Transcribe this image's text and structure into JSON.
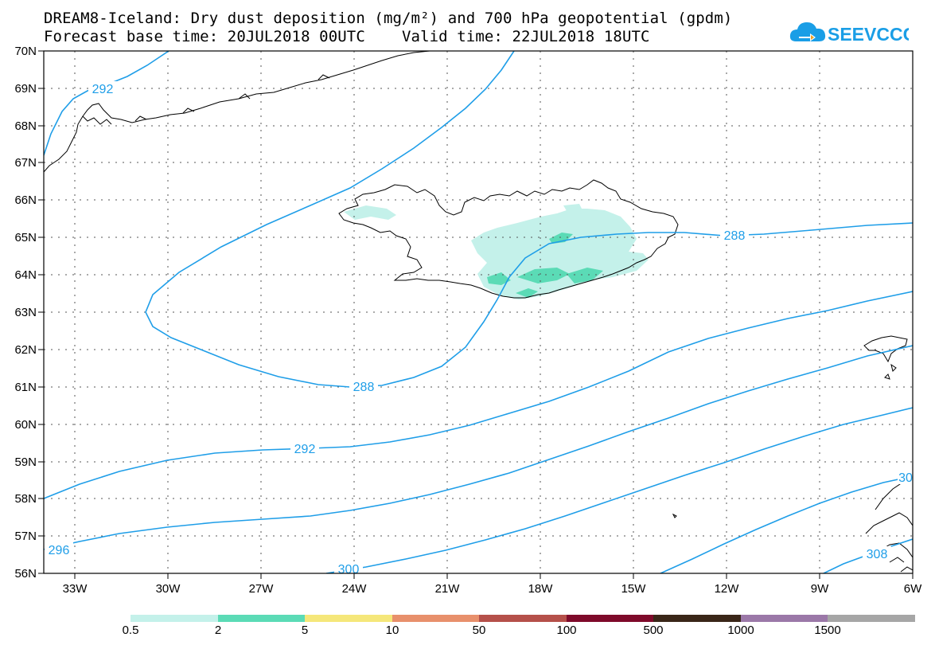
{
  "header": {
    "title_line1": "DREAM8-Iceland: Dry dust deposition (mg/m²) and 700 hPa geopotential (gpdm)",
    "title_line2": "Forecast base time: 20JUL2018 00UTC    Valid time: 22JUL2018 18UTC",
    "logo_text": "SEEVCCC",
    "logo_color": "#1a9ee6"
  },
  "map": {
    "lat_labels": [
      "70N",
      "69N",
      "68N",
      "67N",
      "66N",
      "65N",
      "64N",
      "63N",
      "62N",
      "61N",
      "60N",
      "59N",
      "58N",
      "57N",
      "56N"
    ],
    "lon_labels": [
      "33W",
      "30W",
      "27W",
      "24W",
      "21W",
      "18W",
      "15W",
      "12W",
      "9W",
      "6W"
    ],
    "lat_range": [
      56,
      70
    ],
    "lon_range": [
      -34.3,
      -6
    ],
    "contour_color": "#1f9ee8",
    "contour_labels": [
      "292",
      "288",
      "288",
      "292",
      "296",
      "300",
      "308",
      "30"
    ],
    "grid": "dotted"
  },
  "legend": {
    "labels": [
      "0.5",
      "2",
      "5",
      "10",
      "50",
      "100",
      "500",
      "1000",
      "1500"
    ],
    "colors": [
      "#c4f1ea",
      "#5bdbb6",
      "#f5e77a",
      "#e8906c",
      "#b5504a",
      "#7e0a2a",
      "#3a2618",
      "#9b78a8",
      "#a6a6a6"
    ]
  }
}
